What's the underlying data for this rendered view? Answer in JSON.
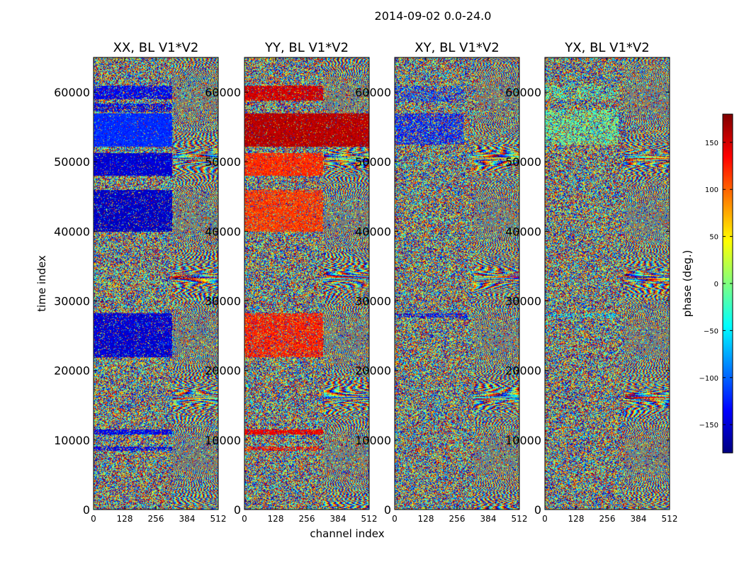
{
  "figure_title": "2014-09-02 0.0-24.0",
  "chart_data": {
    "type": "heatmap",
    "colormap": "jet",
    "xlabel": "channel index",
    "ylabel": "time index",
    "xlim": [
      0,
      512
    ],
    "ylim": [
      0,
      65000
    ],
    "xticks": [
      0,
      128,
      256,
      384,
      512
    ],
    "yticks": [
      0,
      10000,
      20000,
      30000,
      40000,
      50000,
      60000
    ],
    "colorbar": {
      "label": "phase (deg.)",
      "range": [
        -180,
        180
      ],
      "ticks": [
        -150,
        -100,
        -50,
        0,
        50,
        100,
        150
      ]
    },
    "panels": [
      {
        "title": "XX, BL V1*V2",
        "coherent_bands": [
          {
            "t0": 59000,
            "t1": 61000,
            "ch_end": 320,
            "phase": -140,
            "strength": 0.75
          },
          {
            "t0": 57200,
            "t1": 58400,
            "ch_end": 320,
            "phase": -145,
            "strength": 0.55
          },
          {
            "t0": 52200,
            "t1": 57000,
            "ch_end": 320,
            "phase": -120,
            "strength": 0.92
          },
          {
            "t0": 48000,
            "t1": 51300,
            "ch_end": 320,
            "phase": -150,
            "strength": 0.9
          },
          {
            "t0": 40000,
            "t1": 46000,
            "ch_end": 320,
            "phase": -155,
            "strength": 0.85
          },
          {
            "t0": 22000,
            "t1": 28300,
            "ch_end": 320,
            "phase": -150,
            "strength": 0.82
          },
          {
            "t0": 10800,
            "t1": 11600,
            "ch_end": 320,
            "phase": -140,
            "strength": 0.8
          },
          {
            "t0": 8500,
            "t1": 9100,
            "ch_end": 320,
            "phase": -140,
            "strength": 0.6
          }
        ]
      },
      {
        "title": "YY, BL V1*V2",
        "coherent_bands": [
          {
            "t0": 58800,
            "t1": 61000,
            "ch_end": 320,
            "phase": 150,
            "strength": 0.85
          },
          {
            "t0": 52200,
            "t1": 57000,
            "ch_end": 512,
            "phase": 160,
            "strength": 0.92
          },
          {
            "t0": 48000,
            "t1": 51300,
            "ch_end": 320,
            "phase": 120,
            "strength": 0.85
          },
          {
            "t0": 40000,
            "t1": 46000,
            "ch_end": 320,
            "phase": 115,
            "strength": 0.78
          },
          {
            "t0": 22000,
            "t1": 28300,
            "ch_end": 320,
            "phase": 125,
            "strength": 0.72
          },
          {
            "t0": 10800,
            "t1": 11600,
            "ch_end": 320,
            "phase": 140,
            "strength": 0.82
          },
          {
            "t0": 8500,
            "t1": 9100,
            "ch_end": 320,
            "phase": 130,
            "strength": 0.55
          }
        ]
      },
      {
        "title": "XY, BL V1*V2",
        "coherent_bands": [
          {
            "t0": 52500,
            "t1": 57000,
            "ch_end": 280,
            "phase": -125,
            "strength": 0.5
          },
          {
            "t0": 58500,
            "t1": 61000,
            "ch_end": 280,
            "phase": -120,
            "strength": 0.35
          },
          {
            "t0": 27700,
            "t1": 28300,
            "ch_end": 300,
            "phase": -140,
            "strength": 0.45
          }
        ]
      },
      {
        "title": "YX, BL V1*V2",
        "coherent_bands": [
          {
            "t0": 52500,
            "t1": 57500,
            "ch_end": 300,
            "phase": -10,
            "strength": 0.45
          },
          {
            "t0": 59000,
            "t1": 61000,
            "ch_end": 300,
            "phase": -20,
            "strength": 0.3
          },
          {
            "t0": 27700,
            "t1": 28300,
            "ch_end": 300,
            "phase": -50,
            "strength": 0.35
          }
        ]
      }
    ]
  }
}
